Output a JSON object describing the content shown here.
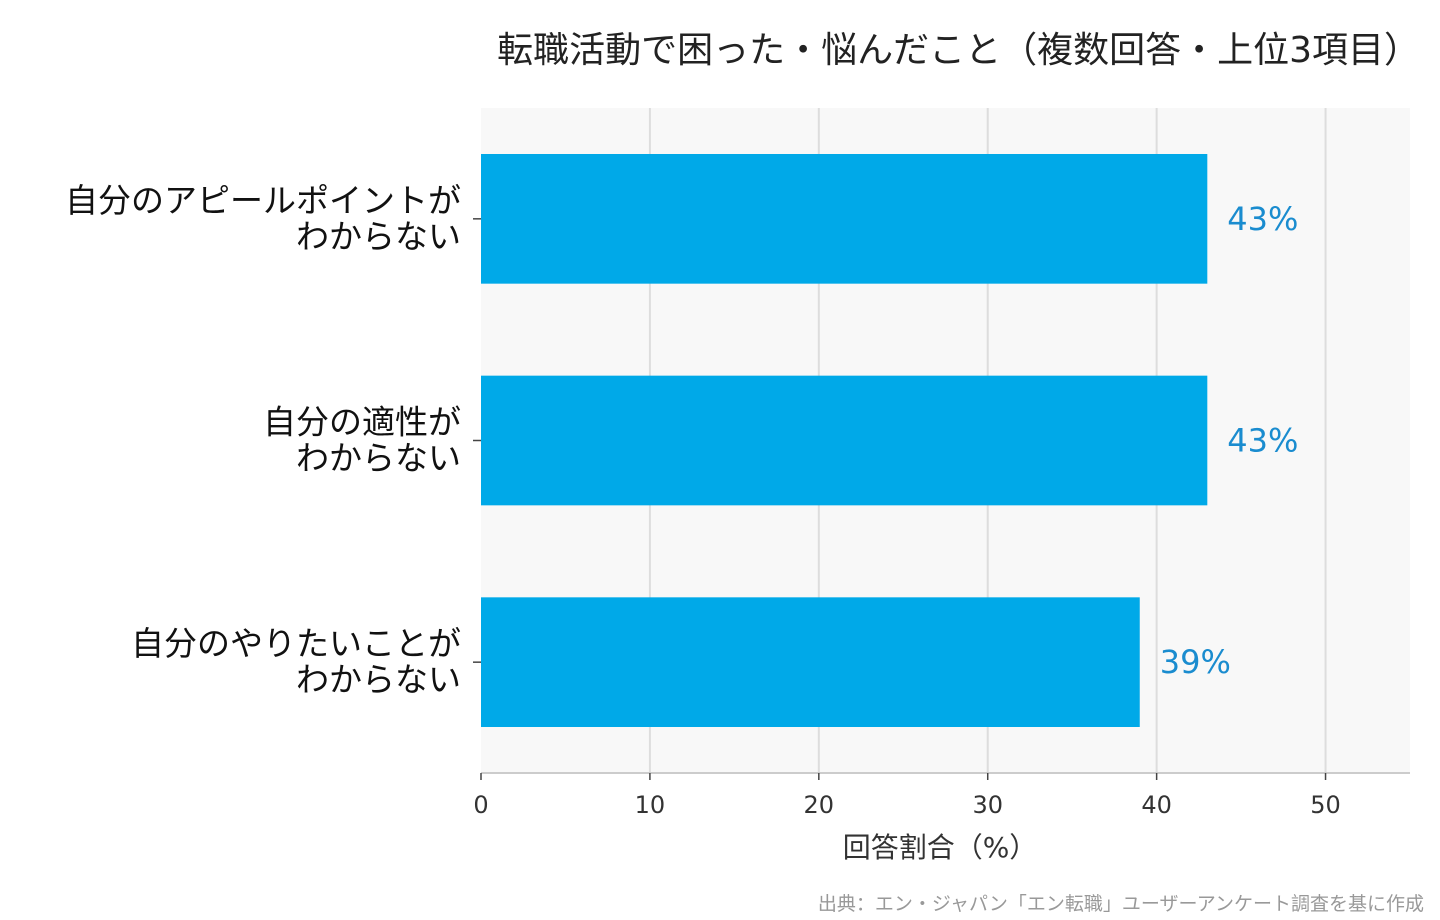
{
  "chart_data": {
    "type": "bar",
    "orientation": "horizontal",
    "title": "転職活動で困った・悩んだこと（複数回答・上位3項目）",
    "categories": [
      [
        "自分のアピールポイントが",
        "わからない"
      ],
      [
        "自分の適性が",
        "わからない"
      ],
      [
        "自分のやりたいことが",
        "わからない"
      ]
    ],
    "values": [
      43,
      43,
      39
    ],
    "data_labels": [
      "43%",
      "43%",
      "39%"
    ],
    "xlabel": "回答割合（%）",
    "xlim": [
      0,
      55
    ],
    "xticks": [
      0,
      10,
      20,
      30,
      40,
      50
    ],
    "grid": true,
    "bar_color": "#00a9e8",
    "label_color": "#1a8ccf",
    "plot_background": "#f8f8f8",
    "source": "出典：エン・ジャパン「エン転職」ユーザーアンケート調査を基に作成"
  }
}
